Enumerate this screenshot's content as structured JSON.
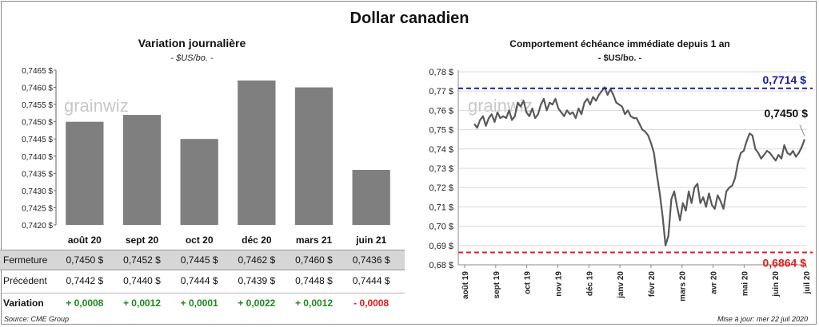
{
  "main_title": "Dollar canadien",
  "chart_data": [
    {
      "type": "bar",
      "title": "Variation  journalière",
      "subtitle": "- $US/bo. -",
      "watermark": "grainwiz",
      "categories": [
        "août 20",
        "sept 20",
        "oct 20",
        "déc 20",
        "mars 21",
        "juin 21"
      ],
      "values": [
        0.745,
        0.7452,
        0.7445,
        0.7462,
        0.746,
        0.7436
      ],
      "ylim": [
        0.742,
        0.7465
      ],
      "yticks": [
        "0,7420 $",
        "0,7425 $",
        "0,7430 $",
        "0,7435 $",
        "0,7440 $",
        "0,7445 $",
        "0,7450 $",
        "0,7455 $",
        "0,7460 $",
        "0,7465 $"
      ],
      "bar_color": "#7f7f7f"
    },
    {
      "type": "line",
      "title": "Comportement échéance immédiate depuis 1 an",
      "subtitle": "- $US/bo. -",
      "watermark": "grainwiz",
      "ylim": [
        0.68,
        0.78
      ],
      "yticks": [
        "0,68 $",
        "0,69 $",
        "0,70 $",
        "0,71 $",
        "0,72 $",
        "0,73 $",
        "0,74 $",
        "0,75 $",
        "0,76 $",
        "0,77 $",
        "0,78 $"
      ],
      "xticks": [
        "août 19",
        "sept 19",
        "oct 19",
        "nov 19",
        "déc 19",
        "janv 20",
        "févr 20",
        "mars 20",
        "avr 20",
        "mai 20",
        "juin 20",
        "juil 20"
      ],
      "line_color": "#595959",
      "series_values": [
        0.753,
        0.751,
        0.755,
        0.757,
        0.752,
        0.756,
        0.758,
        0.754,
        0.759,
        0.756,
        0.757,
        0.756,
        0.76,
        0.755,
        0.757,
        0.764,
        0.762,
        0.765,
        0.759,
        0.757,
        0.761,
        0.756,
        0.758,
        0.763,
        0.766,
        0.76,
        0.764,
        0.763,
        0.766,
        0.761,
        0.759,
        0.757,
        0.76,
        0.758,
        0.759,
        0.756,
        0.761,
        0.758,
        0.764,
        0.766,
        0.763,
        0.767,
        0.765,
        0.768,
        0.77,
        0.772,
        0.768,
        0.771,
        0.768,
        0.764,
        0.763,
        0.762,
        0.758,
        0.76,
        0.757,
        0.756,
        0.756,
        0.753,
        0.75,
        0.749,
        0.747,
        0.743,
        0.738,
        0.727,
        0.717,
        0.705,
        0.69,
        0.695,
        0.714,
        0.718,
        0.71,
        0.703,
        0.712,
        0.708,
        0.718,
        0.712,
        0.72,
        0.722,
        0.712,
        0.715,
        0.71,
        0.717,
        0.711,
        0.709,
        0.716,
        0.713,
        0.709,
        0.718,
        0.72,
        0.721,
        0.725,
        0.733,
        0.738,
        0.739,
        0.744,
        0.748,
        0.747,
        0.74,
        0.738,
        0.735,
        0.737,
        0.739,
        0.738,
        0.736,
        0.734,
        0.737,
        0.735,
        0.742,
        0.738,
        0.737,
        0.739,
        0.736,
        0.738,
        0.741,
        0.745
      ],
      "reference_lines": [
        {
          "label": "0,7714 $",
          "value": 0.7714,
          "color": "#1b1b9a"
        },
        {
          "label": "0,6864 $",
          "value": 0.6864,
          "color": "#e21c1c"
        }
      ],
      "last_value_label": "0,7450 $"
    }
  ],
  "table": {
    "rows": [
      {
        "label": "Fermeture",
        "cells": [
          "0,7450 $",
          "0,7452 $",
          "0,7445 $",
          "0,7462 $",
          "0,7460 $",
          "0,7436 $"
        ]
      },
      {
        "label": "Précédent",
        "cells": [
          "0,7442 $",
          "0,7440 $",
          "0,7444 $",
          "0,7439 $",
          "0,7448 $",
          "0,7444 $"
        ]
      },
      {
        "label": "Variation",
        "cells": [
          "+ 0,0008",
          "+ 0,0012",
          "+ 0,0001",
          "+ 0,0022",
          "+ 0,0012",
          "- 0,0008"
        ],
        "signs": [
          "pos",
          "pos",
          "pos",
          "pos",
          "pos",
          "neg"
        ]
      }
    ]
  },
  "footer": {
    "source": "Source: CME Group",
    "updated": "Mise à jour: mer 22 juil 2020"
  }
}
